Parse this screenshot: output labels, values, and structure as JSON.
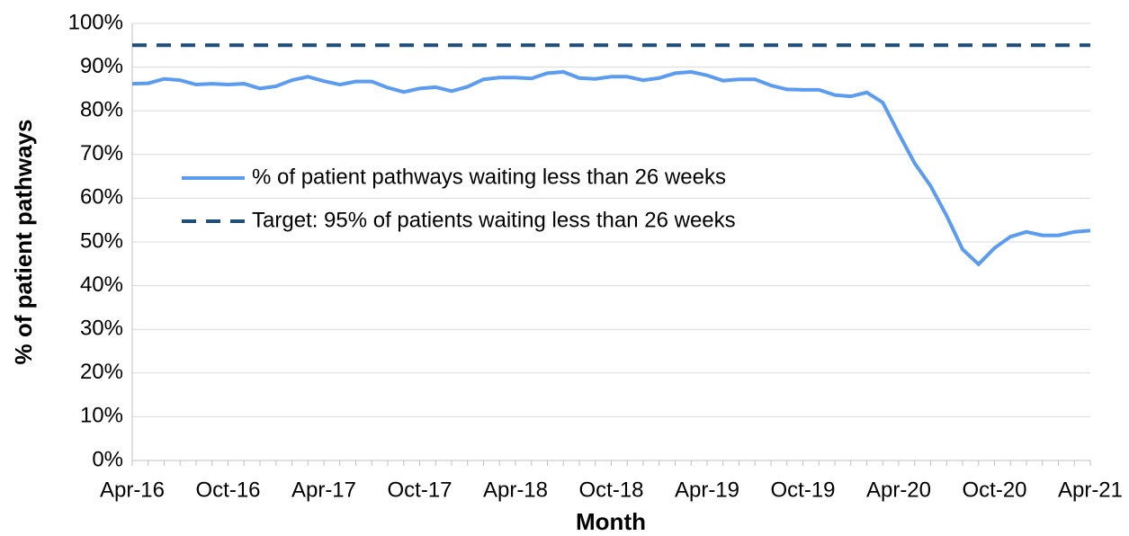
{
  "chart_data": {
    "type": "line",
    "ylabel": "% of patient pathways",
    "xlabel": "Month",
    "categories": [
      "Apr-16",
      null,
      null,
      null,
      null,
      null,
      "Oct-16",
      null,
      null,
      null,
      null,
      null,
      "Apr-17",
      null,
      null,
      null,
      null,
      null,
      "Oct-17",
      null,
      null,
      null,
      null,
      null,
      "Apr-18",
      null,
      null,
      null,
      null,
      null,
      "Oct-18",
      null,
      null,
      null,
      null,
      null,
      "Apr-19",
      null,
      null,
      null,
      null,
      null,
      "Oct-19",
      null,
      null,
      null,
      null,
      null,
      "Apr-20",
      null,
      null,
      null,
      null,
      null,
      "Oct-20",
      null,
      null,
      null,
      null,
      null,
      "Apr-21"
    ],
    "series": [
      {
        "name": "% of patient pathways waiting less than 26 weeks",
        "color": "#5b9bf0",
        "dash": false,
        "values": [
          86.2,
          86.3,
          87.3,
          87.0,
          86.0,
          86.2,
          86.0,
          86.2,
          85.1,
          85.6,
          87.0,
          87.8,
          86.8,
          86.0,
          86.7,
          86.7,
          85.3,
          84.3,
          85.1,
          85.4,
          84.5,
          85.5,
          87.2,
          87.6,
          87.6,
          87.4,
          88.6,
          88.9,
          87.5,
          87.3,
          87.8,
          87.8,
          87.0,
          87.5,
          88.6,
          88.9,
          88.1,
          86.9,
          87.2,
          87.2,
          85.8,
          84.9,
          84.8,
          84.8,
          83.6,
          83.3,
          84.2,
          81.9,
          74.8,
          68.0,
          62.8,
          56.0,
          48.3,
          44.9,
          48.6,
          51.2,
          52.3,
          51.5,
          51.5,
          52.3,
          52.6
        ]
      },
      {
        "name": "Target: 95% of patients waiting less than 26 weeks",
        "color": "#1f4e79",
        "dash": true,
        "values": [
          95,
          95,
          95,
          95,
          95,
          95,
          95,
          95,
          95,
          95,
          95,
          95,
          95,
          95,
          95,
          95,
          95,
          95,
          95,
          95,
          95,
          95,
          95,
          95,
          95,
          95,
          95,
          95,
          95,
          95,
          95,
          95,
          95,
          95,
          95,
          95,
          95,
          95,
          95,
          95,
          95,
          95,
          95,
          95,
          95,
          95,
          95,
          95,
          95,
          95,
          95,
          95,
          95,
          95,
          95,
          95,
          95,
          95,
          95,
          95,
          95
        ]
      }
    ],
    "ylim": [
      0,
      100
    ],
    "yticks": [
      {
        "value": 0,
        "label": "0%"
      },
      {
        "value": 10,
        "label": "10%"
      },
      {
        "value": 20,
        "label": "20%"
      },
      {
        "value": 30,
        "label": "30%"
      },
      {
        "value": 40,
        "label": "40%"
      },
      {
        "value": 50,
        "label": "50%"
      },
      {
        "value": 60,
        "label": "60%"
      },
      {
        "value": 70,
        "label": "70%"
      },
      {
        "value": 80,
        "label": "80%"
      },
      {
        "value": 90,
        "label": "90%"
      },
      {
        "value": 100,
        "label": "100%"
      }
    ],
    "grid": true
  }
}
